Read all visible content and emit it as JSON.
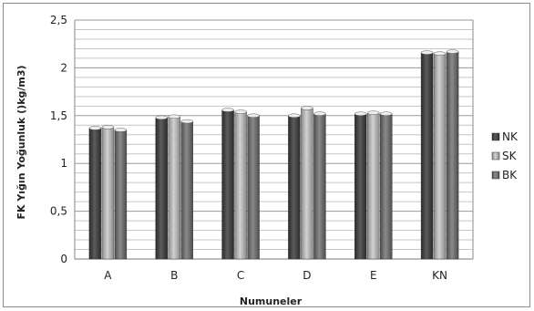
{
  "chart_data": {
    "type": "bar",
    "title": "",
    "xlabel": "Numuneler",
    "ylabel": "FK Yığın Yoğunluk ()kg/m3)",
    "ylim": [
      0,
      2.5
    ],
    "y_ticks": [
      "0",
      "0,5",
      "1",
      "1,5",
      "2",
      "2,5"
    ],
    "minor_grid_step": 0.1,
    "grid": true,
    "legend_position": "right",
    "categories": [
      "A",
      "B",
      "C",
      "D",
      "E",
      "KN"
    ],
    "series": [
      {
        "name": "NK",
        "color": "#3f3f3f",
        "values": [
          1.37,
          1.48,
          1.56,
          1.5,
          1.52,
          2.16
        ]
      },
      {
        "name": "SK",
        "color": "#a8a8a8",
        "values": [
          1.38,
          1.49,
          1.54,
          1.58,
          1.53,
          2.15
        ]
      },
      {
        "name": "BK",
        "color": "#686868",
        "values": [
          1.35,
          1.44,
          1.5,
          1.52,
          1.52,
          2.17
        ]
      }
    ]
  }
}
